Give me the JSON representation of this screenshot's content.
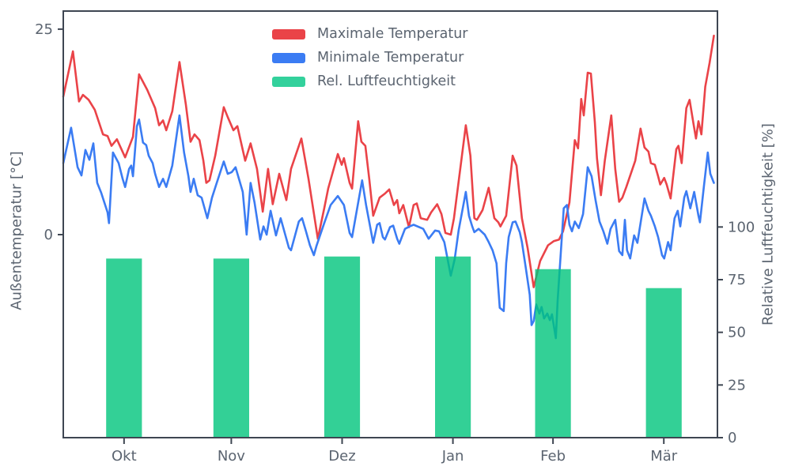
{
  "legend": {
    "items": [
      {
        "label": "Maximale Temperatur",
        "color": "#ea4348"
      },
      {
        "label": "Minimale Temperatur",
        "color": "#3b7cf3"
      },
      {
        "label": "Rel. Luftfeuchtigkeit",
        "color": "#33d19c"
      }
    ]
  },
  "axes": {
    "left": {
      "label": "Außentemperatur [°C]",
      "ticks": [
        0,
        25
      ],
      "range": [
        -24.7,
        27.2
      ]
    },
    "right": {
      "label": "Relative Luftfeuchtigkeit [%]",
      "ticks": [
        0,
        25,
        50,
        75,
        100
      ],
      "range": [
        0,
        202.5
      ]
    },
    "x": {
      "tick_labels": [
        "Okt",
        "Nov",
        "Dez",
        "Jan",
        "Feb",
        "Mär"
      ],
      "tick_days": [
        17,
        47,
        78,
        109,
        137,
        168
      ],
      "range_days": [
        0,
        183
      ]
    }
  },
  "chart_data": {
    "type": "mixed",
    "title": "",
    "x_unit": "days (daily series, mid-Sep to mid-Mar)",
    "series": [
      {
        "name": "Maximale Temperatur",
        "type": "line",
        "axis": "left",
        "color": "#ea4348",
        "points": [
          [
            0,
            16.8
          ],
          [
            2.7,
            22.3
          ],
          [
            4.4,
            16.2
          ],
          [
            5.5,
            17
          ],
          [
            7.1,
            16.4
          ],
          [
            8.8,
            15.2
          ],
          [
            11.1,
            12.2
          ],
          [
            12.4,
            12
          ],
          [
            13.5,
            10.8
          ],
          [
            15,
            11.6
          ],
          [
            17.3,
            9.4
          ],
          [
            19.5,
            11.9
          ],
          [
            21.2,
            19.5
          ],
          [
            23.5,
            17.6
          ],
          [
            25.7,
            15.4
          ],
          [
            26.8,
            13.3
          ],
          [
            27.9,
            13.9
          ],
          [
            28.8,
            12.7
          ],
          [
            30.5,
            15
          ],
          [
            32.5,
            21
          ],
          [
            34.3,
            15.8
          ],
          [
            35.6,
            11.3
          ],
          [
            36.7,
            12.2
          ],
          [
            38.1,
            11.5
          ],
          [
            39.2,
            9
          ],
          [
            40,
            6.3
          ],
          [
            40.9,
            6.6
          ],
          [
            42.5,
            9.6
          ],
          [
            44.9,
            15.5
          ],
          [
            46,
            14.3
          ],
          [
            47.6,
            12.7
          ],
          [
            48.7,
            13.2
          ],
          [
            50.2,
            10.3
          ],
          [
            50.9,
            9
          ],
          [
            52.4,
            11.1
          ],
          [
            54.2,
            8
          ],
          [
            55.8,
            2.8
          ],
          [
            57.3,
            8
          ],
          [
            58.6,
            3.7
          ],
          [
            60.4,
            7.4
          ],
          [
            62.4,
            4.2
          ],
          [
            63.7,
            8
          ],
          [
            66.6,
            11.7
          ],
          [
            68.6,
            6.8
          ],
          [
            71.2,
            -0.5
          ],
          [
            73,
            3.2
          ],
          [
            74.1,
            5.6
          ],
          [
            76.8,
            9.8
          ],
          [
            77.9,
            8.5
          ],
          [
            78.5,
            9.3
          ],
          [
            80.1,
            6.3
          ],
          [
            80.8,
            5.6
          ],
          [
            82.5,
            13.8
          ],
          [
            83.4,
            11.3
          ],
          [
            84.5,
            10.8
          ],
          [
            85.6,
            6.8
          ],
          [
            86.7,
            2.3
          ],
          [
            88.5,
            4.5
          ],
          [
            90,
            5
          ],
          [
            91.2,
            5.5
          ],
          [
            92.5,
            3.6
          ],
          [
            93.4,
            4.2
          ],
          [
            94,
            2.6
          ],
          [
            95.1,
            3.6
          ],
          [
            96.7,
            0.9
          ],
          [
            98,
            3.6
          ],
          [
            98.9,
            3.8
          ],
          [
            100,
            2
          ],
          [
            101.8,
            1.8
          ],
          [
            102.9,
            2.7
          ],
          [
            104.6,
            3.7
          ],
          [
            105.8,
            2.5
          ],
          [
            106.9,
            0.2
          ],
          [
            108.4,
            0
          ],
          [
            109.3,
            2
          ],
          [
            112.6,
            13.3
          ],
          [
            113.9,
            9.6
          ],
          [
            115,
            2
          ],
          [
            115.7,
            1.8
          ],
          [
            117.3,
            3
          ],
          [
            119,
            5.7
          ],
          [
            120.6,
            2
          ],
          [
            121.7,
            1.5
          ],
          [
            122.3,
            1
          ],
          [
            123.9,
            2.3
          ],
          [
            125.7,
            9.6
          ],
          [
            126.8,
            8.4
          ],
          [
            128.3,
            2
          ],
          [
            129.9,
            -1.6
          ],
          [
            131.6,
            -6.4
          ],
          [
            133.4,
            -3.2
          ],
          [
            135.6,
            -1.3
          ],
          [
            137.2,
            -0.8
          ],
          [
            138.7,
            -0.6
          ],
          [
            139.8,
            0.4
          ],
          [
            141.6,
            3.9
          ],
          [
            143.1,
            11.5
          ],
          [
            144,
            10.5
          ],
          [
            144.9,
            16.5
          ],
          [
            145.6,
            14.5
          ],
          [
            146.7,
            19.7
          ],
          [
            147.6,
            19.6
          ],
          [
            148.7,
            13.7
          ],
          [
            149.3,
            9.3
          ],
          [
            150.4,
            4.8
          ],
          [
            151.5,
            9
          ],
          [
            153.3,
            14.5
          ],
          [
            154.4,
            8
          ],
          [
            155.5,
            4
          ],
          [
            156.4,
            4.5
          ],
          [
            157.5,
            5.8
          ],
          [
            160,
            9
          ],
          [
            161.5,
            12.9
          ],
          [
            162.6,
            10.6
          ],
          [
            163.7,
            10.1
          ],
          [
            164.4,
            8.7
          ],
          [
            165.5,
            8.5
          ],
          [
            166.4,
            7.1
          ],
          [
            167,
            6.1
          ],
          [
            168.1,
            6.9
          ],
          [
            168.8,
            6.1
          ],
          [
            169.9,
            4.4
          ],
          [
            171.5,
            10.4
          ],
          [
            172.1,
            10.8
          ],
          [
            173,
            8.7
          ],
          [
            174.3,
            15.4
          ],
          [
            175.2,
            16.4
          ],
          [
            176.3,
            13.5
          ],
          [
            177,
            11.7
          ],
          [
            177.7,
            13.8
          ],
          [
            178.5,
            12.2
          ],
          [
            179.6,
            18
          ],
          [
            180.8,
            20.9
          ],
          [
            182,
            24.2
          ]
        ]
      },
      {
        "name": "Minimale Temperatur",
        "type": "line",
        "axis": "left",
        "color": "#3b7cf3",
        "points": [
          [
            0,
            8.7
          ],
          [
            2.2,
            13
          ],
          [
            4,
            8.2
          ],
          [
            5.1,
            7.2
          ],
          [
            6.2,
            10.3
          ],
          [
            7.3,
            9.1
          ],
          [
            8.4,
            11.1
          ],
          [
            9.5,
            6.3
          ],
          [
            10.6,
            5.1
          ],
          [
            12.4,
            2.7
          ],
          [
            12.8,
            1.4
          ],
          [
            13.9,
            10
          ],
          [
            15.5,
            8.7
          ],
          [
            16.6,
            6.8
          ],
          [
            17.3,
            5.8
          ],
          [
            18.4,
            8
          ],
          [
            19,
            8.4
          ],
          [
            19.5,
            7.1
          ],
          [
            20.6,
            13.2
          ],
          [
            21.2,
            14
          ],
          [
            22.3,
            11.2
          ],
          [
            23.2,
            10.9
          ],
          [
            23.9,
            9.6
          ],
          [
            25,
            8.7
          ],
          [
            25.7,
            7.4
          ],
          [
            26.8,
            5.8
          ],
          [
            27.9,
            6.8
          ],
          [
            28.8,
            5.8
          ],
          [
            30.5,
            8.4
          ],
          [
            32.5,
            14.5
          ],
          [
            33.8,
            10
          ],
          [
            35,
            7.1
          ],
          [
            35.6,
            5.2
          ],
          [
            36.5,
            6.8
          ],
          [
            37.6,
            4.8
          ],
          [
            38.7,
            4.5
          ],
          [
            40.3,
            2
          ],
          [
            41.6,
            4.5
          ],
          [
            42.7,
            6
          ],
          [
            44.9,
            8.9
          ],
          [
            46,
            7.4
          ],
          [
            47.1,
            7.6
          ],
          [
            48.2,
            8.2
          ],
          [
            50.2,
            5.2
          ],
          [
            51.3,
            0
          ],
          [
            52.4,
            6.3
          ],
          [
            53.5,
            3.9
          ],
          [
            55.1,
            -0.6
          ],
          [
            56,
            1
          ],
          [
            56.9,
            0
          ],
          [
            58,
            2.9
          ],
          [
            59.5,
            -0.1
          ],
          [
            60.8,
            2
          ],
          [
            63.1,
            -1.6
          ],
          [
            63.7,
            -1.9
          ],
          [
            65.9,
            1.6
          ],
          [
            66.8,
            2
          ],
          [
            67.9,
            0.4
          ],
          [
            69,
            -1.3
          ],
          [
            70.1,
            -2.5
          ],
          [
            70.8,
            -1.4
          ],
          [
            73,
            1.4
          ],
          [
            74.8,
            3.6
          ],
          [
            76.8,
            4.7
          ],
          [
            78.5,
            3.6
          ],
          [
            80.1,
            0.2
          ],
          [
            80.8,
            -0.3
          ],
          [
            83.6,
            6.6
          ],
          [
            84.7,
            3.6
          ],
          [
            86.7,
            -1
          ],
          [
            87.8,
            1.2
          ],
          [
            88.5,
            1.4
          ],
          [
            89.4,
            -0.3
          ],
          [
            90,
            -0.6
          ],
          [
            91.4,
            0.9
          ],
          [
            92.3,
            1.1
          ],
          [
            93.4,
            -0.5
          ],
          [
            94,
            -1.1
          ],
          [
            95.6,
            0.7
          ],
          [
            96.9,
            1
          ],
          [
            98,
            1.2
          ],
          [
            100.7,
            0.7
          ],
          [
            102.2,
            -0.5
          ],
          [
            104,
            0.5
          ],
          [
            105.1,
            0.4
          ],
          [
            106.6,
            -0.9
          ],
          [
            108.4,
            -5
          ],
          [
            109.5,
            -3
          ],
          [
            110.6,
            0.5
          ],
          [
            112.6,
            5.2
          ],
          [
            113.5,
            2.3
          ],
          [
            114.4,
            1
          ],
          [
            115,
            0.3
          ],
          [
            116.2,
            0.7
          ],
          [
            117.9,
            0
          ],
          [
            119,
            -0.9
          ],
          [
            120.1,
            -1.9
          ],
          [
            121.2,
            -3.5
          ],
          [
            122.1,
            -8.9
          ],
          [
            123.2,
            -9.3
          ],
          [
            123.9,
            -3.5
          ],
          [
            124.6,
            -0.3
          ],
          [
            125.7,
            1.5
          ],
          [
            126.5,
            1.6
          ],
          [
            127.7,
            0.3
          ],
          [
            128.3,
            -0.9
          ],
          [
            129.4,
            -4.1
          ],
          [
            130.5,
            -7.3
          ],
          [
            131,
            -11
          ],
          [
            131.6,
            -10.5
          ],
          [
            132.3,
            -8.5
          ],
          [
            133.2,
            -9.6
          ],
          [
            133.8,
            -8.8
          ],
          [
            134.5,
            -10.2
          ],
          [
            135.4,
            -9.6
          ],
          [
            136.1,
            -10.4
          ],
          [
            136.7,
            -9.7
          ],
          [
            137.8,
            -12.6
          ],
          [
            138.3,
            -8
          ],
          [
            140,
            3.2
          ],
          [
            140.9,
            3.6
          ],
          [
            141.6,
            1.2
          ],
          [
            142.3,
            0.4
          ],
          [
            143.1,
            1.6
          ],
          [
            144.2,
            0.8
          ],
          [
            145.4,
            2.5
          ],
          [
            146.7,
            8.2
          ],
          [
            147.8,
            7.1
          ],
          [
            148.9,
            4.2
          ],
          [
            150,
            1.6
          ],
          [
            151.1,
            0.4
          ],
          [
            152.2,
            -1.1
          ],
          [
            153.1,
            0.7
          ],
          [
            154.4,
            1.8
          ],
          [
            155.5,
            -2
          ],
          [
            156.4,
            -2.5
          ],
          [
            157.1,
            1.8
          ],
          [
            157.7,
            -1.9
          ],
          [
            158.6,
            -2.9
          ],
          [
            159.7,
            -0.1
          ],
          [
            160.6,
            -1
          ],
          [
            162.6,
            4.4
          ],
          [
            163.7,
            2.9
          ],
          [
            164.4,
            2.3
          ],
          [
            165.5,
            1
          ],
          [
            166.4,
            -0.3
          ],
          [
            167.5,
            -2.5
          ],
          [
            168.1,
            -2.9
          ],
          [
            169.2,
            -0.9
          ],
          [
            169.9,
            -1.9
          ],
          [
            171,
            2
          ],
          [
            171.9,
            2.9
          ],
          [
            172.6,
            1
          ],
          [
            173.7,
            4.5
          ],
          [
            174.3,
            5.3
          ],
          [
            175.4,
            3.2
          ],
          [
            176.5,
            5.2
          ],
          [
            177.7,
            2.3
          ],
          [
            178.1,
            1.5
          ],
          [
            179.2,
            5.8
          ],
          [
            180.3,
            10
          ],
          [
            181,
            7.4
          ],
          [
            182,
            6.3
          ]
        ]
      },
      {
        "name": "Rel. Luftfeuchtigkeit",
        "type": "bar",
        "axis": "right",
        "color": "#2fd096",
        "categories": [
          "Okt",
          "Nov",
          "Dez",
          "Jan",
          "Feb",
          "Mär"
        ],
        "values": [
          85,
          85,
          86,
          86,
          80,
          71
        ],
        "bar_center_days": [
          17,
          47,
          78,
          109,
          137,
          168
        ],
        "bar_width_days": 10
      }
    ],
    "legend_position": "upper center",
    "grid": false
  }
}
